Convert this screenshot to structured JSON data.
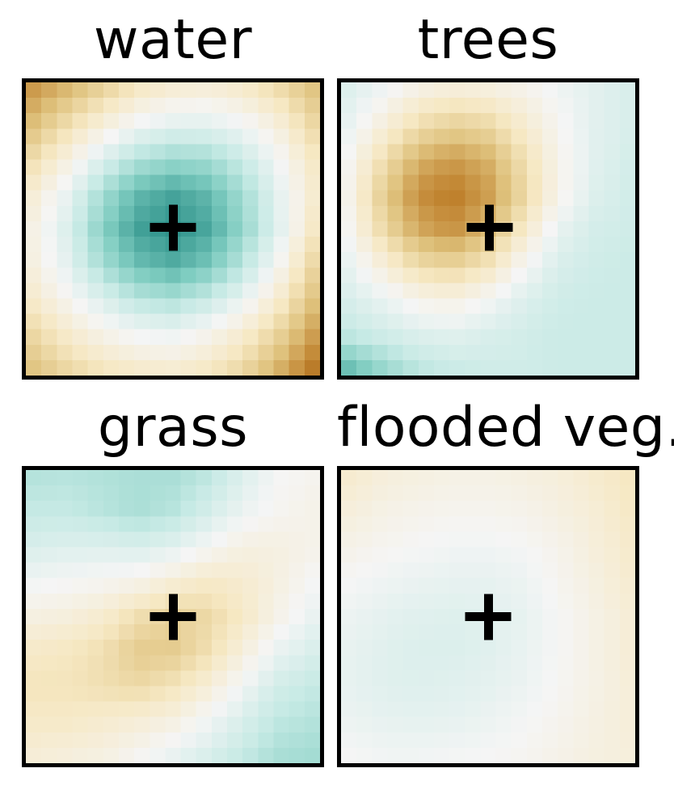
{
  "figure": {
    "background": "#ffffff",
    "border_color": "#000000",
    "title_color": "#000000",
    "marker": {
      "symbol": "+",
      "color": "#000000"
    },
    "colormap": {
      "name": "BrBG",
      "domain": [
        -1,
        1
      ],
      "stops": [
        "#543005",
        "#8c510a",
        "#bf812d",
        "#dfc27d",
        "#f6e8c3",
        "#f5f5f5",
        "#c7eae5",
        "#80cdc1",
        "#35978f",
        "#01665e",
        "#003c30"
      ]
    },
    "render_cells": 19,
    "legend": "none",
    "axes": "none"
  },
  "chart_data": [
    {
      "type": "heatmap",
      "title": "water",
      "marker": {
        "x": 0.5,
        "y": 0.495
      },
      "value_range": [
        -1,
        1
      ],
      "grid": [
        [
          -0.52,
          -0.42,
          -0.3,
          -0.18,
          -0.12,
          -0.1,
          -0.15,
          -0.25,
          -0.38
        ],
        [
          -0.4,
          -0.25,
          -0.1,
          0.02,
          0.08,
          0.08,
          0.02,
          -0.1,
          -0.28
        ],
        [
          -0.25,
          -0.08,
          0.12,
          0.26,
          0.32,
          0.3,
          0.18,
          0.02,
          -0.18
        ],
        [
          -0.12,
          0.06,
          0.3,
          0.48,
          0.55,
          0.48,
          0.3,
          0.08,
          -0.14
        ],
        [
          -0.06,
          0.12,
          0.38,
          0.56,
          0.62,
          0.54,
          0.34,
          0.1,
          -0.18
        ],
        [
          -0.08,
          0.08,
          0.3,
          0.46,
          0.52,
          0.43,
          0.24,
          0.0,
          -0.28
        ],
        [
          -0.15,
          -0.02,
          0.12,
          0.24,
          0.28,
          0.2,
          0.06,
          -0.14,
          -0.38
        ],
        [
          -0.28,
          -0.15,
          -0.05,
          0.02,
          0.04,
          -0.03,
          -0.14,
          -0.3,
          -0.5
        ],
        [
          -0.38,
          -0.28,
          -0.2,
          -0.15,
          -0.13,
          -0.18,
          -0.28,
          -0.44,
          -0.62
        ]
      ]
    },
    {
      "type": "heatmap",
      "title": "trees",
      "marker": {
        "x": 0.505,
        "y": 0.495
      },
      "value_range": [
        -1,
        1
      ],
      "grid": [
        [
          0.1,
          0.02,
          -0.08,
          -0.12,
          -0.1,
          -0.05,
          0.02,
          0.08,
          0.12
        ],
        [
          0.05,
          -0.1,
          -0.25,
          -0.32,
          -0.28,
          -0.15,
          -0.02,
          0.08,
          0.12
        ],
        [
          -0.02,
          -0.25,
          -0.45,
          -0.52,
          -0.45,
          -0.25,
          -0.05,
          0.08,
          0.14
        ],
        [
          -0.05,
          -0.35,
          -0.56,
          -0.62,
          -0.52,
          -0.3,
          -0.05,
          0.1,
          0.15
        ],
        [
          -0.02,
          -0.28,
          -0.48,
          -0.55,
          -0.42,
          -0.18,
          0.05,
          0.14,
          0.16
        ],
        [
          0.05,
          -0.12,
          -0.28,
          -0.32,
          -0.22,
          -0.02,
          0.12,
          0.16,
          0.18
        ],
        [
          0.12,
          0.05,
          -0.05,
          -0.08,
          0.0,
          0.1,
          0.16,
          0.18,
          0.18
        ],
        [
          0.2,
          0.15,
          0.1,
          0.08,
          0.12,
          0.15,
          0.18,
          0.18,
          0.18
        ],
        [
          0.45,
          0.32,
          0.22,
          0.18,
          0.16,
          0.16,
          0.18,
          0.18,
          0.18
        ]
      ]
    },
    {
      "type": "heatmap",
      "title": "grass",
      "marker": {
        "x": 0.5,
        "y": 0.5
      },
      "value_range": [
        -1,
        1
      ],
      "grid": [
        [
          0.25,
          0.24,
          0.26,
          0.28,
          0.28,
          0.22,
          0.1,
          0.0,
          -0.03
        ],
        [
          0.2,
          0.2,
          0.24,
          0.28,
          0.24,
          0.14,
          0.04,
          -0.02,
          -0.05
        ],
        [
          0.12,
          0.1,
          0.1,
          0.12,
          0.08,
          0.0,
          -0.08,
          -0.08,
          -0.05
        ],
        [
          0.02,
          0.0,
          -0.02,
          -0.05,
          -0.12,
          -0.18,
          -0.15,
          -0.08,
          0.0
        ],
        [
          -0.08,
          -0.1,
          -0.15,
          -0.25,
          -0.32,
          -0.28,
          -0.18,
          -0.05,
          0.05
        ],
        [
          -0.18,
          -0.2,
          -0.25,
          -0.35,
          -0.35,
          -0.25,
          -0.1,
          0.05,
          0.12
        ],
        [
          -0.22,
          -0.22,
          -0.25,
          -0.28,
          -0.22,
          -0.12,
          0.02,
          0.15,
          0.2
        ],
        [
          -0.18,
          -0.18,
          -0.15,
          -0.12,
          -0.08,
          0.02,
          0.12,
          0.22,
          0.25
        ],
        [
          -0.12,
          -0.1,
          -0.08,
          -0.02,
          0.05,
          0.12,
          0.2,
          0.28,
          0.3
        ]
      ]
    },
    {
      "type": "heatmap",
      "title": "flooded veg.",
      "marker": {
        "x": 0.5,
        "y": 0.5
      },
      "value_range": [
        -1,
        1
      ],
      "grid": [
        [
          -0.15,
          -0.1,
          -0.08,
          -0.06,
          -0.06,
          -0.08,
          -0.1,
          -0.15,
          -0.2
        ],
        [
          -0.1,
          -0.06,
          -0.04,
          -0.03,
          -0.03,
          -0.04,
          -0.08,
          -0.12,
          -0.18
        ],
        [
          -0.05,
          -0.02,
          0.0,
          0.02,
          0.02,
          0.0,
          -0.04,
          -0.1,
          -0.16
        ],
        [
          0.0,
          0.03,
          0.05,
          0.06,
          0.06,
          0.04,
          -0.02,
          -0.08,
          -0.14
        ],
        [
          0.04,
          0.07,
          0.09,
          0.1,
          0.09,
          0.06,
          0.0,
          -0.06,
          -0.12
        ],
        [
          0.06,
          0.09,
          0.11,
          0.11,
          0.09,
          0.05,
          0.0,
          -0.06,
          -0.12
        ],
        [
          0.06,
          0.09,
          0.1,
          0.09,
          0.07,
          0.04,
          -0.01,
          -0.06,
          -0.11
        ],
        [
          0.04,
          0.06,
          0.07,
          0.06,
          0.04,
          0.01,
          -0.03,
          -0.07,
          -0.11
        ],
        [
          0.0,
          0.02,
          0.02,
          0.01,
          0.0,
          -0.02,
          -0.05,
          -0.08,
          -0.1
        ]
      ]
    }
  ]
}
